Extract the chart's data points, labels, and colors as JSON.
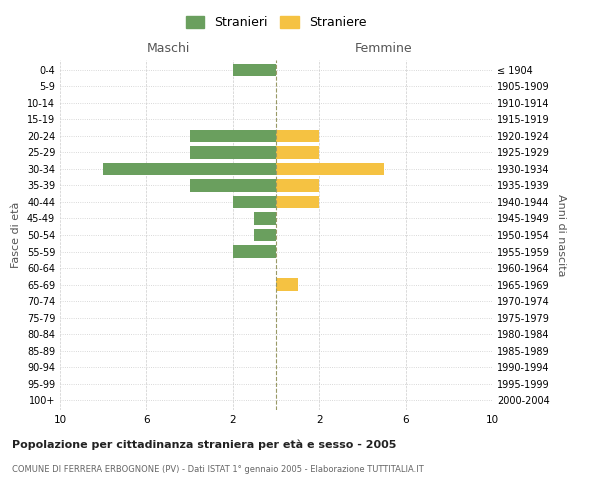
{
  "age_groups": [
    "0-4",
    "5-9",
    "10-14",
    "15-19",
    "20-24",
    "25-29",
    "30-34",
    "35-39",
    "40-44",
    "45-49",
    "50-54",
    "55-59",
    "60-64",
    "65-69",
    "70-74",
    "75-79",
    "80-84",
    "85-89",
    "90-94",
    "95-99",
    "100+"
  ],
  "birth_years": [
    "2000-2004",
    "1995-1999",
    "1990-1994",
    "1985-1989",
    "1980-1984",
    "1975-1979",
    "1970-1974",
    "1965-1969",
    "1960-1964",
    "1955-1959",
    "1950-1954",
    "1945-1949",
    "1940-1944",
    "1935-1939",
    "1930-1934",
    "1925-1929",
    "1920-1924",
    "1915-1919",
    "1910-1914",
    "1905-1909",
    "≤ 1904"
  ],
  "males": [
    2,
    0,
    0,
    0,
    4,
    4,
    8,
    4,
    2,
    1,
    1,
    2,
    0,
    0,
    0,
    0,
    0,
    0,
    0,
    0,
    0
  ],
  "females": [
    0,
    0,
    0,
    0,
    2,
    2,
    5,
    2,
    2,
    0,
    0,
    0,
    0,
    1,
    0,
    0,
    0,
    0,
    0,
    0,
    0
  ],
  "male_color": "#6a9f5e",
  "female_color": "#f5c242",
  "title1": "Popolazione per cittadinanza straniera per età e sesso - 2005",
  "title2": "COMUNE DI FERRERA ERBOGNONE (PV) - Dati ISTAT 1° gennaio 2005 - Elaborazione TUTTITALIA.IT",
  "xlabel_left": "Maschi",
  "xlabel_right": "Femmine",
  "ylabel_left": "Fasce di età",
  "ylabel_right": "Anni di nascita",
  "legend_stranieri": "Stranieri",
  "legend_straniere": "Straniere",
  "xlim": 10,
  "bg_color": "#ffffff",
  "grid_color": "#cccccc",
  "bar_height": 0.75
}
